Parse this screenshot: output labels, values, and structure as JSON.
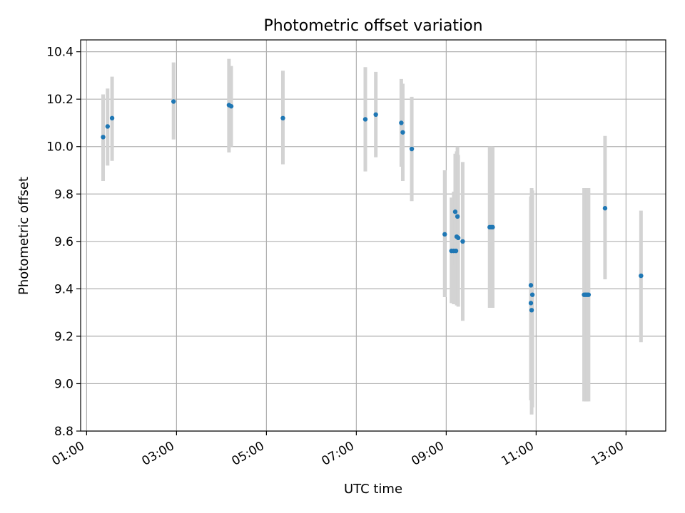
{
  "chart_data": {
    "type": "scatter",
    "title": "Photometric offset variation",
    "xlabel": "UTC time",
    "ylabel": "Photometric offset",
    "x_axis": "time",
    "xlim": [
      "00:52",
      "13:53"
    ],
    "ylim": [
      8.8,
      10.45
    ],
    "xticks": [
      "01:00",
      "03:00",
      "05:00",
      "07:00",
      "09:00",
      "11:00",
      "13:00"
    ],
    "yticks": [
      "8.8",
      "9.0",
      "9.2",
      "9.4",
      "9.6",
      "9.8",
      "10.0",
      "10.2",
      "10.4"
    ],
    "grid": true,
    "point_color": "#1f77b4",
    "errorbar_color": "#d3d3d3",
    "points": [
      {
        "t": "01:22",
        "y": 10.04,
        "lo": 9.855,
        "hi": 10.22
      },
      {
        "t": "01:28",
        "y": 10.085,
        "lo": 9.92,
        "hi": 10.245
      },
      {
        "t": "01:34",
        "y": 10.12,
        "lo": 9.94,
        "hi": 10.295
      },
      {
        "t": "02:56",
        "y": 10.19,
        "lo": 10.03,
        "hi": 10.355
      },
      {
        "t": "04:10",
        "y": 10.175,
        "lo": 9.975,
        "hi": 10.37
      },
      {
        "t": "04:13",
        "y": 10.17,
        "lo": 10.0,
        "hi": 10.34
      },
      {
        "t": "05:22",
        "y": 10.12,
        "lo": 9.925,
        "hi": 10.32
      },
      {
        "t": "07:12",
        "y": 10.115,
        "lo": 9.895,
        "hi": 10.335
      },
      {
        "t": "07:26",
        "y": 10.135,
        "lo": 9.955,
        "hi": 10.315
      },
      {
        "t": "08:00",
        "y": 10.1,
        "lo": 9.915,
        "hi": 10.285
      },
      {
        "t": "08:02",
        "y": 10.06,
        "lo": 9.855,
        "hi": 10.265
      },
      {
        "t": "08:14",
        "y": 9.99,
        "lo": 9.77,
        "hi": 10.21
      },
      {
        "t": "08:58",
        "y": 9.63,
        "lo": 9.365,
        "hi": 9.9
      },
      {
        "t": "09:07",
        "y": 9.56,
        "lo": 9.34,
        "hi": 9.785
      },
      {
        "t": "09:10",
        "y": 9.56,
        "lo": 9.335,
        "hi": 9.81
      },
      {
        "t": "09:12",
        "y": 9.725,
        "lo": 9.5,
        "hi": 9.97
      },
      {
        "t": "09:13",
        "y": 9.56,
        "lo": 9.345,
        "hi": 9.93
      },
      {
        "t": "09:14",
        "y": 9.62,
        "lo": 9.33,
        "hi": 9.98
      },
      {
        "t": "09:15",
        "y": 9.705,
        "lo": 9.45,
        "hi": 10.0
      },
      {
        "t": "09:16",
        "y": 9.615,
        "lo": 9.325,
        "hi": 9.965
      },
      {
        "t": "09:22",
        "y": 9.6,
        "lo": 9.265,
        "hi": 9.935
      },
      {
        "t": "09:58",
        "y": 9.66,
        "lo": 9.32,
        "hi": 10.0
      },
      {
        "t": "10:00",
        "y": 9.66,
        "lo": 9.32,
        "hi": 10.0
      },
      {
        "t": "10:02",
        "y": 9.66,
        "lo": 9.32,
        "hi": 10.0
      },
      {
        "t": "10:53",
        "y": 9.415,
        "lo": 8.94,
        "hi": 9.775
      },
      {
        "t": "10:53",
        "y": 9.34,
        "lo": 8.93,
        "hi": 9.79
      },
      {
        "t": "10:54",
        "y": 9.31,
        "lo": 8.87,
        "hi": 9.825
      },
      {
        "t": "10:55",
        "y": 9.375,
        "lo": 8.9,
        "hi": 9.815
      },
      {
        "t": "12:04",
        "y": 9.375,
        "lo": 8.925,
        "hi": 9.825
      },
      {
        "t": "12:06",
        "y": 9.375,
        "lo": 8.925,
        "hi": 9.825
      },
      {
        "t": "12:08",
        "y": 9.375,
        "lo": 8.925,
        "hi": 9.825
      },
      {
        "t": "12:10",
        "y": 9.375,
        "lo": 8.925,
        "hi": 9.825
      },
      {
        "t": "12:32",
        "y": 9.74,
        "lo": 9.44,
        "hi": 10.045
      },
      {
        "t": "13:20",
        "y": 9.455,
        "lo": 9.175,
        "hi": 9.73
      }
    ]
  }
}
